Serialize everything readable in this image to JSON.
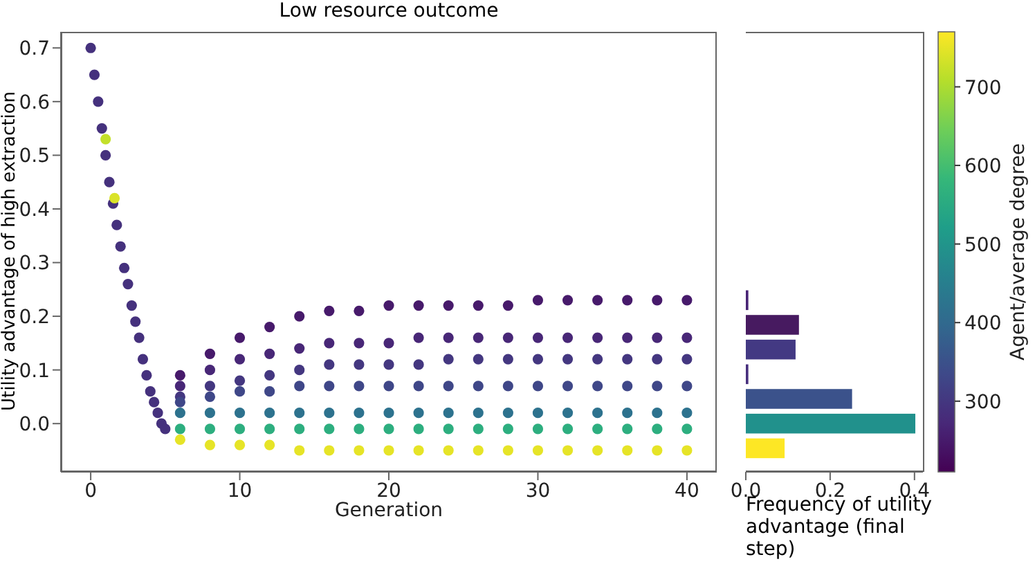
{
  "chart_data": [
    {
      "type": "scatter",
      "title": "Low resource outcome",
      "xlabel": "Generation",
      "ylabel": "Utility advantage of high extraction",
      "clabel": "Agent/average degree",
      "x": [
        0,
        0.25,
        0.5,
        0.75,
        1,
        1.25,
        1.5,
        1.75,
        2,
        2.25,
        2.5,
        2.75,
        3,
        3.25,
        3.5,
        3.75,
        4,
        4.25,
        4.5,
        4.75,
        5,
        1,
        1.6,
        6,
        8,
        10,
        12,
        14,
        16,
        18,
        20,
        22,
        24,
        26,
        28,
        30,
        32,
        34,
        36,
        38,
        40,
        6,
        8,
        10,
        12,
        14,
        16,
        18,
        20,
        22,
        24,
        26,
        28,
        30,
        32,
        34,
        36,
        38,
        40,
        6,
        8,
        10,
        12,
        14,
        16,
        18,
        20,
        22,
        24,
        26,
        28,
        30,
        32,
        34,
        36,
        38,
        40,
        6,
        8,
        10,
        12,
        14,
        16,
        18,
        20,
        22,
        24,
        26,
        28,
        30,
        32,
        34,
        36,
        38,
        40,
        6,
        8,
        10,
        12,
        14,
        16,
        18,
        20,
        22,
        24,
        26,
        28,
        30,
        32,
        34,
        36,
        38,
        40,
        6,
        8,
        10,
        12,
        14,
        16,
        18,
        20,
        22,
        24,
        26,
        28,
        30,
        32,
        34,
        36,
        38,
        40,
        6,
        8,
        10,
        12,
        14,
        16,
        18,
        20,
        22,
        24,
        26,
        28,
        30,
        32,
        34,
        36,
        38,
        40
      ],
      "values": [
        0.7,
        0.65,
        0.6,
        0.55,
        0.5,
        0.45,
        0.41,
        0.37,
        0.33,
        0.29,
        0.26,
        0.22,
        0.19,
        0.16,
        0.12,
        0.09,
        0.06,
        0.04,
        0.02,
        0.0,
        -0.01,
        0.53,
        0.42,
        0.09,
        0.13,
        0.16,
        0.18,
        0.2,
        0.21,
        0.21,
        0.22,
        0.22,
        0.22,
        0.22,
        0.22,
        0.23,
        0.23,
        0.23,
        0.23,
        0.23,
        0.23,
        0.07,
        0.1,
        0.12,
        0.13,
        0.14,
        0.15,
        0.15,
        0.15,
        0.16,
        0.16,
        0.16,
        0.16,
        0.16,
        0.16,
        0.16,
        0.16,
        0.16,
        0.16,
        0.05,
        0.07,
        0.08,
        0.09,
        0.1,
        0.11,
        0.11,
        0.11,
        0.11,
        0.12,
        0.12,
        0.12,
        0.12,
        0.12,
        0.12,
        0.12,
        0.12,
        0.12,
        0.04,
        0.05,
        0.06,
        0.06,
        0.07,
        0.07,
        0.07,
        0.07,
        0.07,
        0.07,
        0.07,
        0.07,
        0.07,
        0.07,
        0.07,
        0.07,
        0.07,
        0.07,
        0.02,
        0.02,
        0.02,
        0.02,
        0.02,
        0.02,
        0.02,
        0.02,
        0.02,
        0.02,
        0.02,
        0.02,
        0.02,
        0.02,
        0.02,
        0.02,
        0.02,
        0.02,
        -0.01,
        -0.01,
        -0.01,
        -0.01,
        -0.01,
        -0.01,
        -0.01,
        -0.01,
        -0.01,
        -0.01,
        -0.01,
        -0.01,
        -0.01,
        -0.01,
        -0.01,
        -0.01,
        -0.01,
        -0.01,
        -0.03,
        -0.04,
        -0.04,
        -0.04,
        -0.05,
        -0.05,
        -0.05,
        -0.05,
        -0.05,
        -0.05,
        -0.05,
        -0.05,
        -0.05,
        -0.05,
        -0.05,
        -0.05,
        -0.05,
        -0.05
      ],
      "cvalues": [
        290,
        290,
        290,
        290,
        290,
        290,
        290,
        290,
        290,
        290,
        290,
        290,
        290,
        290,
        290,
        290,
        290,
        290,
        290,
        290,
        290,
        720,
        740,
        250,
        250,
        250,
        250,
        250,
        250,
        250,
        250,
        250,
        250,
        250,
        250,
        250,
        250,
        250,
        250,
        250,
        250,
        270,
        270,
        270,
        270,
        270,
        270,
        270,
        270,
        270,
        270,
        270,
        270,
        270,
        270,
        270,
        270,
        270,
        270,
        300,
        300,
        300,
        300,
        300,
        300,
        300,
        300,
        300,
        300,
        300,
        300,
        300,
        300,
        300,
        300,
        300,
        300,
        330,
        330,
        330,
        330,
        330,
        330,
        330,
        330,
        330,
        330,
        330,
        330,
        330,
        330,
        330,
        330,
        330,
        330,
        420,
        420,
        420,
        420,
        420,
        420,
        420,
        420,
        420,
        420,
        420,
        420,
        420,
        420,
        420,
        420,
        420,
        420,
        560,
        560,
        560,
        560,
        560,
        560,
        560,
        560,
        560,
        560,
        560,
        560,
        560,
        560,
        560,
        560,
        560,
        560,
        750,
        750,
        750,
        750,
        750,
        750,
        750,
        750,
        750,
        750,
        750,
        750,
        750,
        750,
        750,
        750,
        750,
        750
      ],
      "xlim": [
        -2,
        42
      ],
      "xticks": [
        0,
        10,
        20,
        30,
        40
      ],
      "ylim": [
        -0.09,
        0.73
      ],
      "yticks": [
        {
          "value": 0,
          "label": "0.0"
        },
        0.1,
        0.2,
        0.3,
        0.4,
        0.5,
        0.6,
        0.7
      ],
      "clim": [
        210,
        770
      ],
      "cticks": [
        300,
        400,
        500,
        600,
        700
      ],
      "marker": "circle"
    },
    {
      "type": "histogram",
      "orientation": "horizontal",
      "xlabel": "Frequency of utility advantage (final step)",
      "bins": [
        -0.069,
        -0.023,
        0.023,
        0.069,
        0.115,
        0.161,
        0.207,
        0.253
      ],
      "values": [
        0.092,
        0.402,
        0.252,
        0.006,
        0.118,
        0.126,
        0.006
      ],
      "colors": [
        "#fde725",
        "#21918c",
        "#3b528b",
        "#472f7d",
        "#433983",
        "#471a60",
        "#482475"
      ],
      "xlim": [
        0,
        0.42
      ],
      "xticks": [
        {
          "value": 0,
          "label": "0.0"
        },
        0.2,
        0.4
      ],
      "ylim": [
        -0.09,
        0.73
      ],
      "tick_labels": "x"
    }
  ]
}
